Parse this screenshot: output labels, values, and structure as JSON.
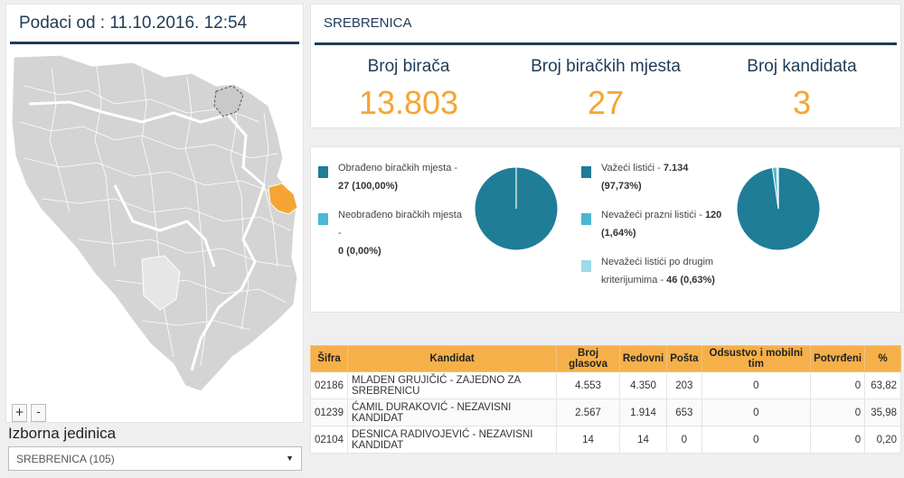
{
  "map_panel": {
    "header": "Podaci od : 11.10.2016. 12:54",
    "zoom_in": "+",
    "zoom_out": "-",
    "highlight_color": "#f5a533"
  },
  "electoral_unit": {
    "label": "Izborna jedinica",
    "selected": "SREBRENICA (105)"
  },
  "municipality": {
    "title": "SREBRENICA"
  },
  "stats": {
    "voters_label": "Broj birača",
    "voters_value": "13.803",
    "stations_label": "Broj biračkih mjesta",
    "stations_value": "27",
    "candidates_label": "Broj kandidata",
    "candidates_value": "3"
  },
  "processing": {
    "processed_label": "Obrađeno biračkih mjesta -",
    "processed_value": "27 (100,00%)",
    "unprocessed_label": "Neobrađeno biračkih mjesta -",
    "unprocessed_value": "0 (0,00%)",
    "colors": [
      "#1f7d97",
      "#4bb7d4"
    ],
    "fractions": [
      1.0,
      0.0
    ]
  },
  "ballots": {
    "valid_label": "Važeći listići -",
    "valid_value": "7.134",
    "valid_pct": "(97,73%)",
    "blank_label": "Nevažeći prazni listići -",
    "blank_value": "120",
    "blank_pct": "(1,64%)",
    "other_label": "Nevažeći listići po drugim",
    "other_label2": "kriterijumima -",
    "other_value": "46 (0,63%)",
    "colors": [
      "#1f7d97",
      "#4bb7d4",
      "#9fd9ea"
    ],
    "fractions": [
      0.9773,
      0.0164,
      0.0063
    ]
  },
  "table": {
    "headers": [
      "Šifra",
      "Kandidat",
      "Broj glasova",
      "Redovni",
      "Pošta",
      "Odsustvo i mobilni tim",
      "Potvrđeni",
      "%"
    ],
    "rows": [
      [
        "02186",
        "MLADEN GRUJIČIĆ - ZAJEDNO ZA SREBRENICU",
        "4.553",
        "4.350",
        "203",
        "0",
        "0",
        "63,82"
      ],
      [
        "01239",
        "ĆAMIL DURAKOVIĆ - NEZAVISNI KANDIDAT",
        "2.567",
        "1.914",
        "653",
        "0",
        "0",
        "35,98"
      ],
      [
        "02104",
        "DESNICA RADIVOJEVIĆ - NEZAVISNI KANDIDAT",
        "14",
        "14",
        "0",
        "0",
        "0",
        "0,20"
      ]
    ]
  }
}
